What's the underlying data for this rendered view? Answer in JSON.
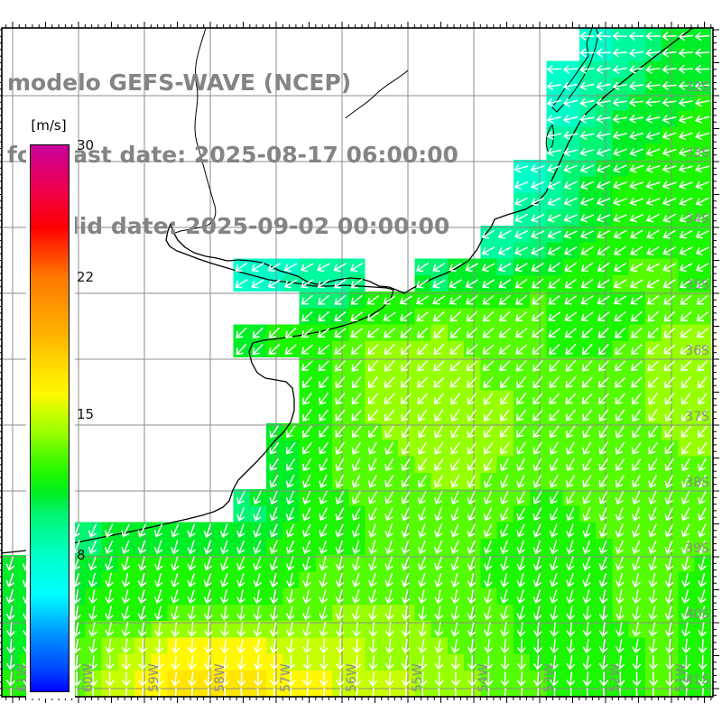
{
  "title": {
    "model_line": "modelo GEFS-WAVE (NCEP)",
    "forecast_line": "forecast date: 2025-08-17 06:00:00",
    "valid_line": "valid date: 2025-09-02 00:00:00",
    "color": "#848484"
  },
  "colorbar": {
    "unit_label": "[m/s]",
    "tick_labels": [
      "30",
      "22",
      "15",
      "8"
    ],
    "tick_values": [
      30,
      22,
      15,
      8
    ],
    "top_value": 30,
    "bottom_value": 0.5,
    "color_scale": [
      [
        30,
        "#c8009b"
      ],
      [
        27,
        "#f10043"
      ],
      [
        25,
        "#ff0000"
      ],
      [
        22,
        "#ff7a00"
      ],
      [
        19,
        "#ffb400"
      ],
      [
        17,
        "#ffe600"
      ],
      [
        16,
        "#fff800"
      ],
      [
        15,
        "#c8ff00"
      ],
      [
        14,
        "#96ff00"
      ],
      [
        13,
        "#55fb00"
      ],
      [
        12,
        "#1cf600"
      ],
      [
        11,
        "#00ee28"
      ],
      [
        10,
        "#00f573"
      ],
      [
        9,
        "#00fa9e"
      ],
      [
        8,
        "#00ffc8"
      ],
      [
        7,
        "#00ffe4"
      ],
      [
        6,
        "#00ffff"
      ],
      [
        4,
        "#0096ff"
      ],
      [
        2,
        "#0040ff"
      ],
      [
        0.5,
        "#0000ff"
      ]
    ]
  },
  "map": {
    "lat_gridline_labels": [
      "32S",
      "33S",
      "34S",
      "35S",
      "36S",
      "37S",
      "38S",
      "39S",
      "40S",
      "41S"
    ],
    "lon_gridline_labels": [
      "61W",
      "60W",
      "59W",
      "58W",
      "57W",
      "56W",
      "55W",
      "54W",
      "53W",
      "52W",
      "51W"
    ],
    "gridline_color": "#8c8c8c",
    "geo_label_color": "#8a8a8a",
    "border_color": "#000000",
    "coastline_color": "#000000",
    "arrow_color": "#ffffff",
    "land_color": "#ffffff"
  },
  "chart_data": {
    "type": "heatmap",
    "quantity": "wind speed [m/s] with direction arrows over sea",
    "grid_cols": 22,
    "grid_rows": 20,
    "value_encoding": "one base36 char per coarse cell (7=7 m/s ... h=17 m/s); '.' = land / no data",
    "speeds_mps_rows": [
      "..................89bb",
      ".................89abb",
      ".................8abbc",
      ".................9abcc",
      "................8abccc",
      "................9abccc",
      "...............9abcccc",
      ".......8899..abbcccddc",
      ".........bbccddddcccdd",
      ".......bccdeeedddccdee",
      ".........cdeeeedddddee",
      ".........cdeeeeeddddee",
      "........bcddeeeeddddde",
      "........bcdddeeddddddd",
      ".......abccdddddccdddd",
      ".aabbbbbcccddddccccddd",
      "bbbccccccddddddccccddc",
      "bbcccdddddeeedddcccddc",
      "bcdefgggfffeeeddccccdc",
      "cddfghhhggfffeeddcccdc"
    ],
    "arrow_direction": "toward W at 31S veering smoothly to toward S at 41S",
    "lat_range_s": [
      31,
      41.2
    ],
    "lon_range_w": [
      61.2,
      50.4
    ]
  }
}
